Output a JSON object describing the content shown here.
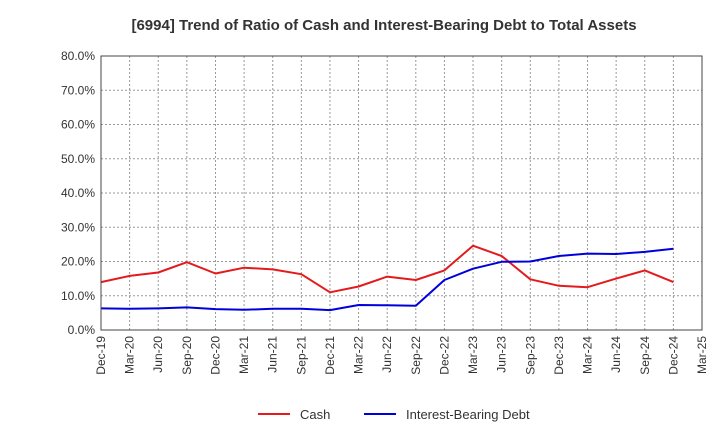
{
  "chart_data": {
    "type": "line",
    "title": "[6994]  Trend of Ratio of Cash and Interest-Bearing Debt to Total Assets",
    "xlabel": "",
    "ylabel": "",
    "ylim": [
      0,
      80
    ],
    "y_ticks": [
      "0.0%",
      "10.0%",
      "20.0%",
      "30.0%",
      "40.0%",
      "50.0%",
      "60.0%",
      "70.0%",
      "80.0%"
    ],
    "categories": [
      "Dec-19",
      "Mar-20",
      "Jun-20",
      "Sep-20",
      "Dec-20",
      "Mar-21",
      "Jun-21",
      "Sep-21",
      "Dec-21",
      "Mar-22",
      "Jun-22",
      "Sep-22",
      "Dec-22",
      "Mar-23",
      "Jun-23",
      "Sep-23",
      "Dec-23",
      "Mar-24",
      "Jun-24",
      "Sep-24",
      "Dec-24",
      "Mar-25"
    ],
    "grid": true,
    "legend_position": "bottom",
    "series": [
      {
        "name": "Cash",
        "color": "#e41a1c",
        "values": [
          14.0,
          15.8,
          16.8,
          19.8,
          16.5,
          18.2,
          17.7,
          16.3,
          11.0,
          12.7,
          15.6,
          14.6,
          17.4,
          24.6,
          21.6,
          14.8,
          12.9,
          12.5,
          15.0,
          17.4,
          14.0,
          null
        ]
      },
      {
        "name": "Interest-Bearing Debt",
        "color": "#0000dd",
        "values": [
          6.3,
          6.2,
          6.3,
          6.6,
          6.1,
          5.9,
          6.2,
          6.2,
          5.8,
          7.3,
          7.2,
          7.1,
          14.6,
          17.9,
          19.9,
          20.0,
          21.6,
          22.3,
          22.2,
          22.8,
          23.7,
          null
        ]
      }
    ]
  }
}
